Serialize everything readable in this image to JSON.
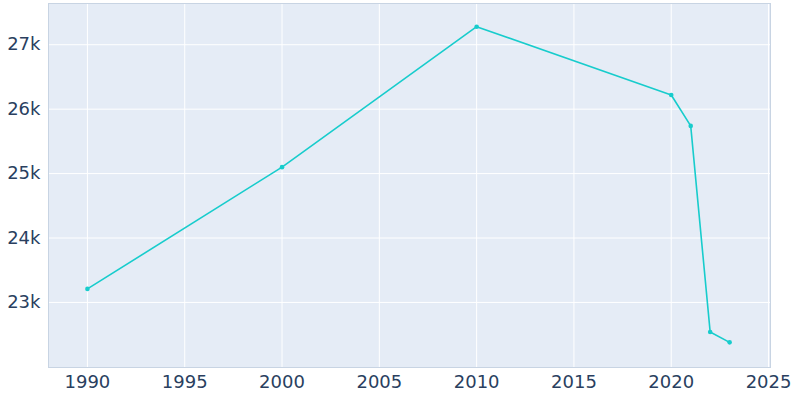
{
  "chart_data": {
    "type": "line",
    "x": [
      1990,
      2000,
      2010,
      2020,
      2021,
      2022,
      2023
    ],
    "values": [
      23210,
      25100,
      27280,
      26220,
      25740,
      22540,
      22380
    ],
    "color": "#17cccc",
    "marker": "circle",
    "xlim": [
      1988,
      2025.1
    ],
    "xticks": [
      1990,
      1995,
      2000,
      2005,
      2010,
      2015,
      2020,
      2025
    ],
    "ylim": [
      21990,
      27640
    ],
    "yticks": [
      {
        "value": 23000,
        "label": "23k"
      },
      {
        "value": 24000,
        "label": "24k"
      },
      {
        "value": 25000,
        "label": "25k"
      },
      {
        "value": 26000,
        "label": "26k"
      },
      {
        "value": 27000,
        "label": "27k"
      }
    ],
    "grid": true
  }
}
